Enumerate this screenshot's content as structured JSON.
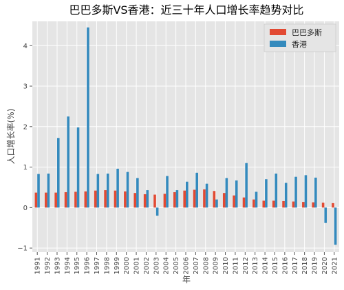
{
  "chart_data": {
    "type": "bar",
    "title": "巴巴多斯VS香港：近三十年人口增长率趋势对比",
    "xlabel": "年",
    "ylabel": "人口增长率(%)",
    "ylim": [
      -1.1,
      4.6
    ],
    "yticks": [
      -1,
      0,
      1,
      2,
      3,
      4
    ],
    "grid": true,
    "legend_position": "top-right",
    "categories": [
      "1991",
      "1992",
      "1993",
      "1994",
      "1995",
      "1996",
      "1997",
      "1998",
      "1999",
      "2000",
      "2001",
      "2002",
      "2003",
      "2004",
      "2005",
      "2006",
      "2007",
      "2008",
      "2009",
      "2010",
      "2011",
      "2012",
      "2013",
      "2014",
      "2015",
      "2016",
      "2017",
      "2018",
      "2019",
      "2020",
      "2021"
    ],
    "series": [
      {
        "name": "巴巴多斯",
        "color": "#e24a33",
        "values": [
          0.37,
          0.37,
          0.37,
          0.38,
          0.39,
          0.4,
          0.42,
          0.43,
          0.42,
          0.4,
          0.36,
          0.33,
          0.32,
          0.34,
          0.38,
          0.42,
          0.44,
          0.45,
          0.41,
          0.36,
          0.3,
          0.25,
          0.2,
          0.17,
          0.17,
          0.16,
          0.15,
          0.14,
          0.13,
          0.12,
          0.11
        ]
      },
      {
        "name": "香港",
        "color": "#348abd",
        "values": [
          0.83,
          0.84,
          1.72,
          2.25,
          1.98,
          4.45,
          0.83,
          0.84,
          0.96,
          0.88,
          0.73,
          0.43,
          -0.2,
          0.78,
          0.43,
          0.64,
          0.86,
          0.59,
          0.2,
          0.73,
          0.67,
          1.1,
          0.39,
          0.7,
          0.84,
          0.61,
          0.76,
          0.8,
          0.74,
          -0.38,
          -0.92
        ]
      }
    ]
  }
}
